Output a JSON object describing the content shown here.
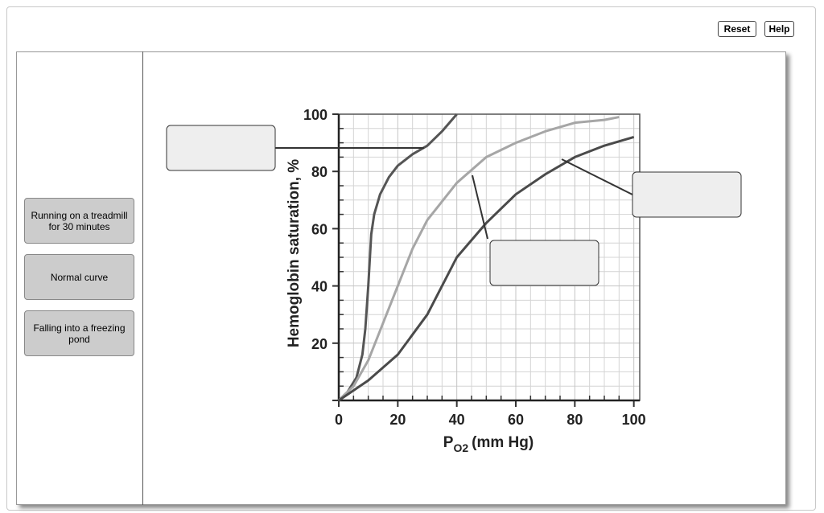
{
  "toolbar": {
    "buttons": [
      "Reset",
      "Help"
    ]
  },
  "tiles": [
    "Running on a treadmill for 30 minutes",
    "Normal curve",
    "Falling into a freezing pond"
  ],
  "chart_data": {
    "type": "line",
    "y_label": "Hemoglobin saturation, %",
    "x_label": "P",
    "x_label_sub": "O2",
    "x_label_unit": "(mm Hg)",
    "xlim": [
      0,
      102
    ],
    "ylim": [
      0,
      100
    ],
    "xticks": [
      0,
      20,
      40,
      60,
      80,
      100
    ],
    "yticks": [
      0,
      20,
      40,
      60,
      80,
      100
    ],
    "xminorticks": [
      5,
      10,
      15,
      25,
      30,
      35,
      45,
      50,
      55,
      65,
      70,
      75,
      85,
      90,
      95
    ],
    "yminorticks": [
      5,
      10,
      15,
      25,
      30,
      35,
      45,
      50,
      55,
      65,
      70,
      75,
      85,
      90,
      95
    ],
    "grid": true,
    "series": [
      {
        "color": "#555555",
        "x": [
          0,
          3,
          6,
          8,
          9,
          10,
          11,
          12,
          14,
          17,
          20,
          25,
          30,
          35,
          40
        ],
        "values": [
          0,
          3,
          8,
          16,
          25,
          40,
          58,
          65,
          72,
          78,
          82,
          86,
          89,
          94,
          100
        ]
      },
      {
        "color": "#a6a6a6",
        "x": [
          0,
          5,
          10,
          15,
          20,
          25,
          30,
          40,
          50,
          60,
          70,
          80,
          90,
          95
        ],
        "values": [
          0,
          5,
          14,
          27,
          40,
          53,
          63,
          76,
          85,
          90,
          94,
          97,
          98,
          99
        ]
      },
      {
        "color": "#4a4a4a",
        "x": [
          0,
          10,
          20,
          30,
          40,
          50,
          60,
          70,
          80,
          90,
          100
        ],
        "values": [
          0,
          7,
          16,
          30,
          50,
          62,
          72,
          79,
          85,
          89,
          92
        ]
      }
    ]
  }
}
